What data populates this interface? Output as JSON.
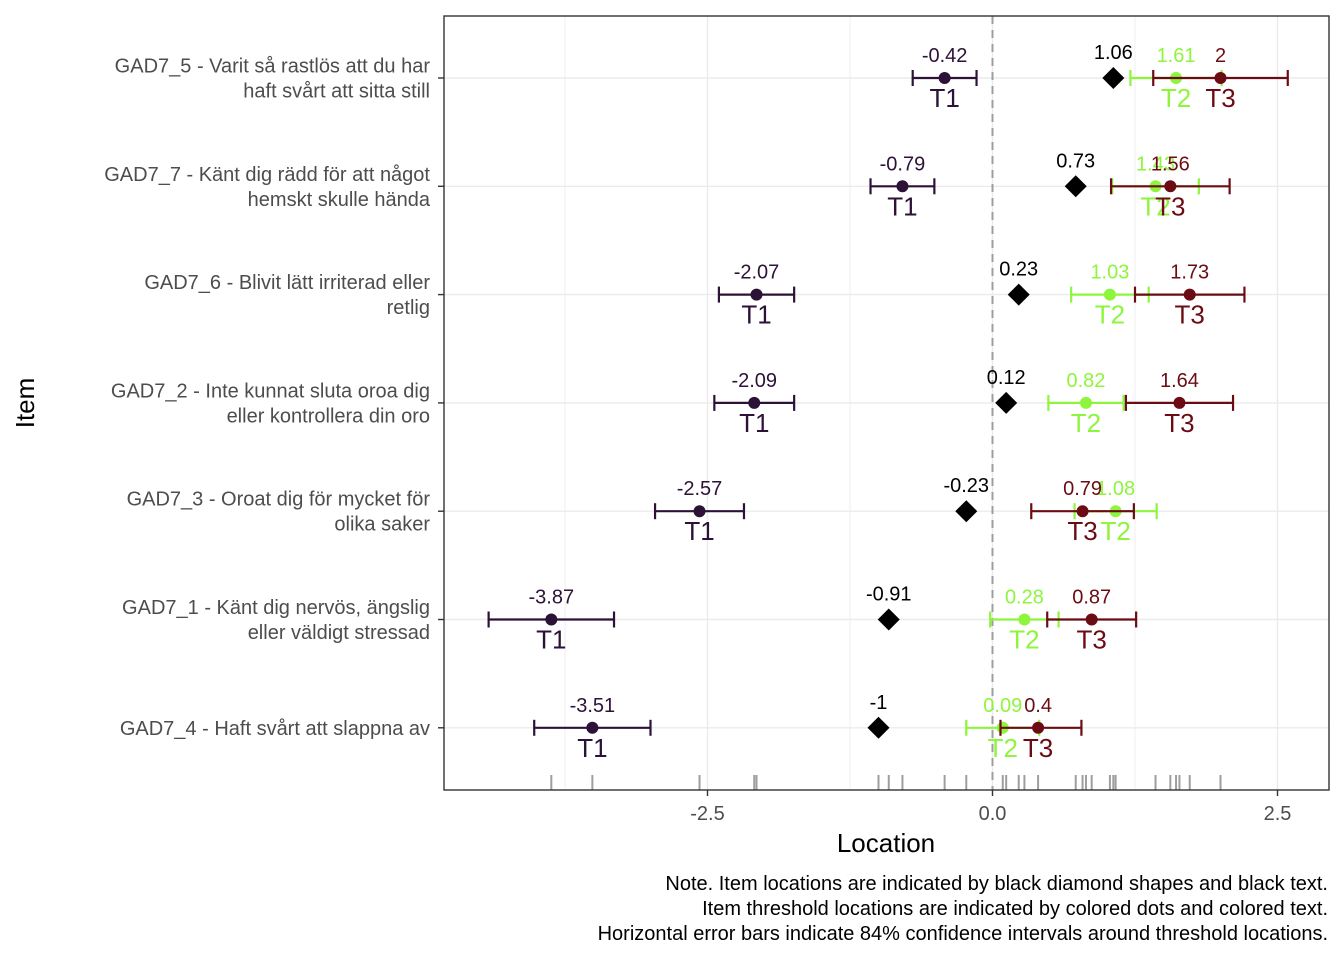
{
  "chart_data": {
    "type": "scatter",
    "title": "",
    "xlabel": "Location",
    "ylabel": "Item",
    "xlim": [
      -4.85,
      2.95
    ],
    "x_ticks": [
      -2.5,
      0.0,
      2.5
    ],
    "x_tick_labels": [
      "-2.5",
      "0.0",
      "2.5"
    ],
    "reference_line_x": 0,
    "grid": true,
    "categories": [
      [
        "GAD7_5 - Varit så rastlös att du har",
        "haft svårt att sitta still"
      ],
      [
        "GAD7_7 - Känt dig rädd för att något",
        "hemskt skulle hända"
      ],
      [
        "GAD7_6 - Blivit lätt irriterad eller",
        "retlig"
      ],
      [
        "GAD7_2 - Inte kunnat sluta oroa dig",
        "eller kontrollera din oro"
      ],
      [
        "GAD7_3 - Oroat dig för mycket för",
        "olika saker"
      ],
      [
        "GAD7_1 - Känt dig nervös, ängslig",
        "eller väldigt stressad"
      ],
      [
        "GAD7_4 - Haft svårt att slappna av"
      ]
    ],
    "item_locations": {
      "marker": "diamond",
      "color": "#000000",
      "values": [
        1.06,
        0.73,
        0.23,
        0.12,
        -0.23,
        -0.91,
        -1.0
      ],
      "labels": [
        "1.06",
        "0.73",
        "0.23",
        "0.12",
        "-0.23",
        "-0.91",
        "-1"
      ]
    },
    "series": [
      {
        "name": "T1",
        "color": "#2d1238",
        "values": [
          -0.42,
          -0.79,
          -2.07,
          -2.09,
          -2.57,
          -3.87,
          -3.51
        ],
        "labels": [
          "-0.42",
          "-0.79",
          "-2.07",
          "-2.09",
          "-2.57",
          "-3.87",
          "-3.51"
        ],
        "ci_low": [
          -0.7,
          -1.07,
          -2.4,
          -2.44,
          -2.96,
          -4.42,
          -4.02
        ],
        "ci_high": [
          -0.14,
          -0.51,
          -1.74,
          -1.74,
          -2.18,
          -3.32,
          -3.0
        ]
      },
      {
        "name": "T2",
        "color": "#8ef53d",
        "values": [
          1.61,
          1.43,
          1.03,
          0.82,
          1.08,
          0.28,
          0.09
        ],
        "labels": [
          "1.61",
          "1.43",
          "1.03",
          "0.82",
          "1.08",
          "0.28",
          "0.09"
        ],
        "ci_low": [
          1.21,
          1.05,
          0.69,
          0.49,
          0.72,
          -0.02,
          -0.23
        ],
        "ci_high": [
          2.01,
          1.81,
          1.37,
          1.15,
          1.44,
          0.58,
          0.41
        ]
      },
      {
        "name": "T3",
        "color": "#6b0c14",
        "values": [
          2.0,
          1.56,
          1.73,
          1.64,
          0.79,
          0.87,
          0.4
        ],
        "labels": [
          "2",
          "1.56",
          "1.73",
          "1.64",
          "0.79",
          "0.87",
          "0.4"
        ],
        "ci_low": [
          1.41,
          1.04,
          1.25,
          1.17,
          0.34,
          0.48,
          0.07
        ],
        "ci_high": [
          2.59,
          2.08,
          2.21,
          2.11,
          1.24,
          1.26,
          0.78
        ]
      }
    ],
    "rug": [
      -3.87,
      -3.51,
      -2.57,
      -2.09,
      -2.07,
      -1.0,
      -0.91,
      -0.79,
      -0.42,
      -0.23,
      0.09,
      0.12,
      0.23,
      0.28,
      0.4,
      0.73,
      0.79,
      0.82,
      0.87,
      1.03,
      1.06,
      1.08,
      1.43,
      1.56,
      1.61,
      1.64,
      1.73,
      2.0
    ],
    "notes": [
      "Note. Item locations are indicated by black diamond shapes and black text.",
      "Item threshold locations are indicated by colored dots and colored text.",
      "Horizontal error bars indicate 84% confidence intervals around threshold locations."
    ]
  }
}
